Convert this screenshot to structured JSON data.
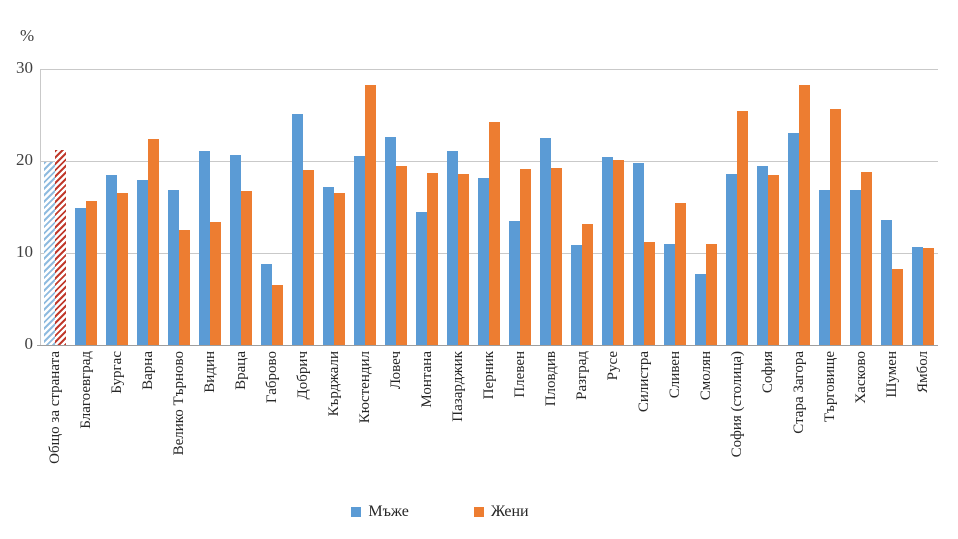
{
  "chart": {
    "unit_label": "%",
    "y_ticks": [
      30,
      20,
      10,
      0
    ],
    "grid_color": "#C9C9C9",
    "axis_color": "#9E9E9E",
    "text_color": "#262626"
  },
  "chart_data": {
    "type": "bar",
    "title": "",
    "xlabel": "",
    "ylabel": "%",
    "ylim": [
      0,
      30
    ],
    "grid": "horizontal",
    "gridline_values": [
      10,
      20,
      30
    ],
    "legend_position": "bottom",
    "categories": [
      "Общо за страната",
      "Благоевград",
      "Бургас",
      "Варна",
      "Велико Търново",
      "Видин",
      "Враца",
      "Габрово",
      "Добрич",
      "Кърджали",
      "Кюстендил",
      "Ловеч",
      "Монтана",
      "Пазарджик",
      "Перник",
      "Плевен",
      "Пловдив",
      "Разград",
      "Русе",
      "Силистра",
      "Сливен",
      "Смолян",
      "София (столица)",
      "София",
      "Стара Загора",
      "Търговище",
      "Хасково",
      "Шумен",
      "Ямбол"
    ],
    "series": [
      {
        "name": "Мъже",
        "color": "#5B9BD5",
        "values": [
          19.9,
          14.9,
          18.5,
          17.9,
          16.9,
          21.1,
          20.7,
          8.8,
          25.1,
          17.2,
          20.5,
          22.6,
          14.5,
          21.1,
          18.2,
          13.5,
          22.5,
          10.9,
          20.4,
          19.8,
          11.0,
          7.7,
          18.6,
          19.5,
          23.0,
          16.8,
          16.8,
          13.6,
          10.7
        ]
      },
      {
        "name": "Жени",
        "color": "#ED7D31",
        "values": [
          21.2,
          15.6,
          16.5,
          22.4,
          12.5,
          13.4,
          16.7,
          6.5,
          19.0,
          16.5,
          28.3,
          19.5,
          18.7,
          18.6,
          24.2,
          19.1,
          19.2,
          13.2,
          20.1,
          11.2,
          15.4,
          11.0,
          25.4,
          18.5,
          28.3,
          25.7,
          18.8,
          8.3,
          10.5
        ]
      }
    ],
    "first_category_style": {
      "note": "Общо за страната bars are drawn with diagonal hatching",
      "men_hatch_color": "#8FBBDF",
      "women_hatch_color": "#C0392B"
    }
  }
}
